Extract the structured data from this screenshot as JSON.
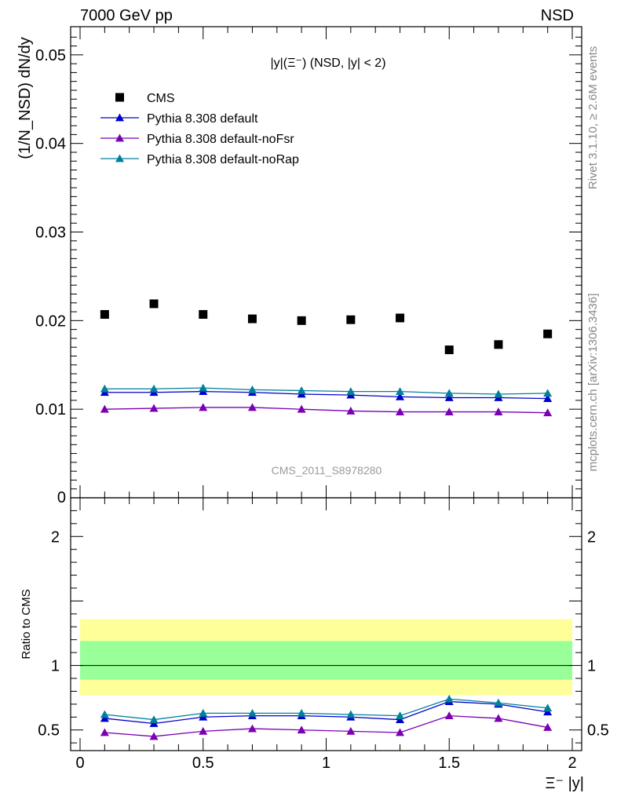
{
  "header": {
    "left": "7000 GeV pp",
    "right": "NSD"
  },
  "side_text": {
    "rivet": "Rivet 3.1.10, ≥ 2.6M events",
    "mcplots": "mcplots.cern.ch [arXiv:1306.3436]"
  },
  "chart_data": [
    {
      "type": "scatter",
      "panel": "main",
      "title": "|y|(Ξ⁻) (NSD, |y| < 2)",
      "watermark": "CMS_2011_S8978280",
      "ylabel": "(1/N_NSD) dN/dy",
      "xlim": [
        0,
        2
      ],
      "ylim": [
        0,
        0.053
      ],
      "yticks": [
        "0.01",
        "0.02",
        "0.03",
        "0.04",
        "0.05"
      ],
      "ytick_values": [
        0.01,
        0.02,
        0.03,
        0.04,
        0.05
      ],
      "ytick_zero": "0",
      "legend_placement": "top-left",
      "x": [
        0.1,
        0.3,
        0.5,
        0.7,
        0.9,
        1.1,
        1.3,
        1.5,
        1.7,
        1.9
      ],
      "series": [
        {
          "name": "CMS",
          "marker": "square",
          "color": "#000000",
          "values": [
            0.0207,
            0.0219,
            0.0207,
            0.0202,
            0.02,
            0.0201,
            0.0203,
            0.0167,
            0.0173,
            0.0185
          ]
        },
        {
          "name": "Pythia 8.308 default",
          "marker": "triangle",
          "color": "#0000cc",
          "values": [
            0.0119,
            0.0119,
            0.012,
            0.0119,
            0.0117,
            0.0116,
            0.0114,
            0.0113,
            0.0113,
            0.0112
          ]
        },
        {
          "name": "Pythia 8.308 default-noFsr",
          "marker": "triangle",
          "color": "#7a00b3",
          "values": [
            0.01,
            0.0101,
            0.0102,
            0.0102,
            0.01,
            0.0098,
            0.0097,
            0.0097,
            0.0097,
            0.0096
          ]
        },
        {
          "name": "Pythia 8.308 default-noRap",
          "marker": "triangle",
          "color": "#00809c",
          "values": [
            0.0123,
            0.0123,
            0.0124,
            0.0122,
            0.0121,
            0.012,
            0.012,
            0.0118,
            0.0117,
            0.0118
          ]
        }
      ]
    },
    {
      "type": "line",
      "panel": "ratio",
      "ylabel": "Ratio to CMS",
      "xlabel": "Ξ⁻ |y|",
      "xlim": [
        0,
        2
      ],
      "ylim": [
        0.34,
        2.3
      ],
      "xticks": [
        "0",
        "0.5",
        "1",
        "1.5",
        "2"
      ],
      "xtick_values": [
        0,
        0.5,
        1,
        1.5,
        2
      ],
      "yticks": [
        "0.5",
        "1",
        "2"
      ],
      "ytick_values": [
        0.5,
        1,
        2
      ],
      "band_outer": [
        0.77,
        1.36
      ],
      "band_inner": [
        0.89,
        1.19
      ],
      "band_outer_color": "#ffff99",
      "band_inner_color": "#99ff99",
      "x": [
        0.1,
        0.3,
        0.5,
        0.7,
        0.9,
        1.1,
        1.3,
        1.5,
        1.7,
        1.9
      ],
      "series": [
        {
          "name": "Pythia 8.308 default",
          "color": "#0000cc",
          "values": [
            0.59,
            0.55,
            0.6,
            0.61,
            0.61,
            0.6,
            0.58,
            0.72,
            0.7,
            0.64
          ]
        },
        {
          "name": "Pythia 8.308 default-noFsr",
          "color": "#7a00b3",
          "values": [
            0.48,
            0.45,
            0.49,
            0.51,
            0.5,
            0.49,
            0.48,
            0.61,
            0.59,
            0.52
          ]
        },
        {
          "name": "Pythia 8.308 default-noRap",
          "color": "#00809c",
          "values": [
            0.62,
            0.58,
            0.63,
            0.63,
            0.63,
            0.62,
            0.61,
            0.74,
            0.71,
            0.67
          ]
        }
      ]
    }
  ]
}
